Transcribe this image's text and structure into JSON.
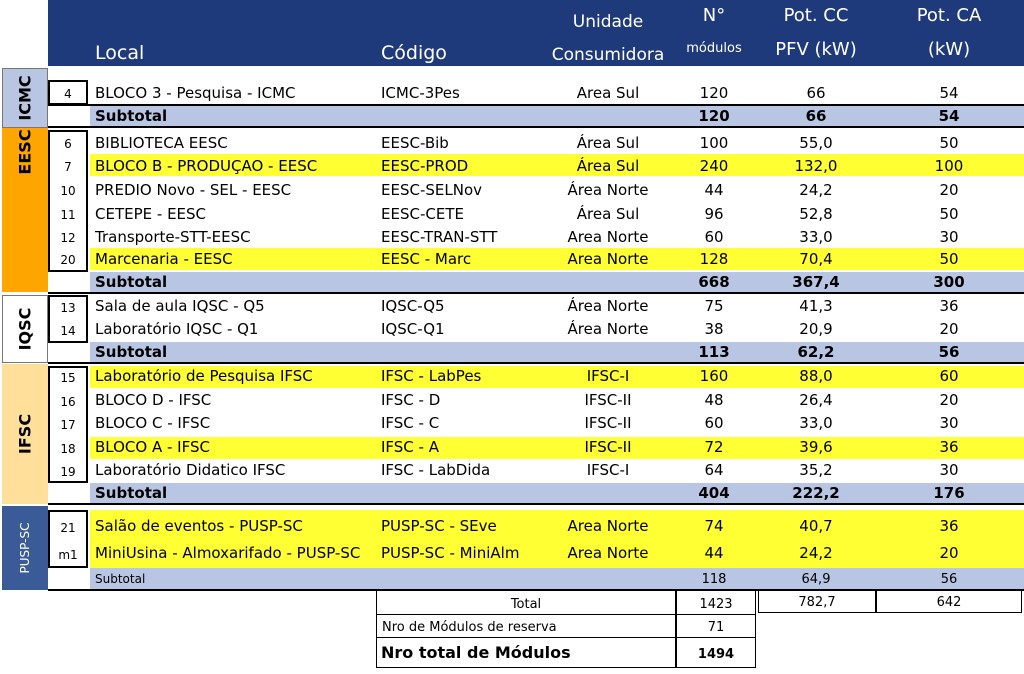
{
  "header": {
    "local": "Local",
    "codigo": "Código",
    "unidade_1": "Unidade",
    "unidade_2": "Consumidora",
    "modulos_1": "N°",
    "modulos_2": "módulos",
    "cc_1": "Pot. CC",
    "cc_2": "PFV (kW)",
    "ca_1": "Pot. CA",
    "ca_2": "(kW)"
  },
  "groups": {
    "icmc": "ICMC",
    "eesc": "EESC",
    "iqsc": "IQSC",
    "ifsc": "IFSC",
    "pusp": "PUSP-SC"
  },
  "colors": {
    "header": "#1F3A7A",
    "highlight": "#FFFF33",
    "subtotal": "#B8C6E4",
    "icmc": "#B8C6E4",
    "eesc": "#FFA500",
    "iqsc": "#FFFFFF",
    "ifsc": "#FFDF99",
    "pusp": "#3A5A98"
  },
  "rows": [
    {
      "num": "4",
      "local": "BLOCO 3 - Pesquisa - ICMC",
      "codigo": "ICMC-3Pes",
      "unidade": "Area Sul",
      "modulos": "120",
      "cc": "66",
      "ca": "54"
    },
    {
      "num": "6",
      "local": "BIBLIOTECA EESC",
      "codigo": "EESC-Bib",
      "unidade": "Área Sul",
      "modulos": "100",
      "cc": "55,0",
      "ca": "50"
    },
    {
      "num": "7",
      "local": "BLOCO B - PRODUÇÃO - EESC",
      "codigo": "EESC-PROD",
      "unidade": "Área Sul",
      "modulos": "240",
      "cc": "132,0",
      "ca": "100"
    },
    {
      "num": "10",
      "local": "PRÉDIO Novo - SEL - EESC",
      "codigo": "EESC-SELNov",
      "unidade": "Área Norte",
      "modulos": "44",
      "cc": "24,2",
      "ca": "20"
    },
    {
      "num": "11",
      "local": "CETEPE - EESC",
      "codigo": "EESC-CETE",
      "unidade": "Área Sul",
      "modulos": "96",
      "cc": "52,8",
      "ca": "50"
    },
    {
      "num": "12",
      "local": "Transporte-STT-EESC",
      "codigo": "EESC-TRAN-STT",
      "unidade": "Area Norte",
      "modulos": "60",
      "cc": "33,0",
      "ca": "30"
    },
    {
      "num": "20",
      "local": "Marcenaria - EESC",
      "codigo": "EESC - Marc",
      "unidade": "Area Norte",
      "modulos": "128",
      "cc": "70,4",
      "ca": "50"
    },
    {
      "num": "13",
      "local": "Sala de aula IQSC - Q5",
      "codigo": "IQSC-Q5",
      "unidade": "Área Norte",
      "modulos": "75",
      "cc": "41,3",
      "ca": "36"
    },
    {
      "num": "14",
      "local": "Laboratório IQSC - Q1",
      "codigo": "IQSC-Q1",
      "unidade": "Área Norte",
      "modulos": "38",
      "cc": "20,9",
      "ca": "20"
    },
    {
      "num": "15",
      "local": "Laboratório de Pesquisa IFSC",
      "codigo": "IFSC - LabPes",
      "unidade": "IFSC-I",
      "modulos": "160",
      "cc": "88,0",
      "ca": "60"
    },
    {
      "num": "16",
      "local": "BLOCO D - IFSC",
      "codigo": "IFSC - D",
      "unidade": "IFSC-II",
      "modulos": "48",
      "cc": "26,4",
      "ca": "20"
    },
    {
      "num": "17",
      "local": "BLOCO C - IFSC",
      "codigo": "IFSC - C",
      "unidade": "IFSC-II",
      "modulos": "60",
      "cc": "33,0",
      "ca": "30"
    },
    {
      "num": "18",
      "local": "BLOCO A - IFSC",
      "codigo": "IFSC - A",
      "unidade": "IFSC-II",
      "modulos": "72",
      "cc": "39,6",
      "ca": "36"
    },
    {
      "num": "19",
      "local": "Laboratório Didatico IFSC",
      "codigo": "IFSC - LabDida",
      "unidade": "IFSC-I",
      "modulos": "64",
      "cc": "35,2",
      "ca": "30"
    },
    {
      "num": "21",
      "local": "Salão de eventos - PUSP-SC",
      "codigo": "PUSP-SC - SEve",
      "unidade": "Area Norte",
      "modulos": "74",
      "cc": "40,7",
      "ca": "36"
    },
    {
      "num": "m1",
      "local": "MiniUsina - Almoxarifado - PUSP-SC",
      "codigo": "PUSP-SC - MiniAlm",
      "unidade": "Area Norte",
      "modulos": "44",
      "cc": "24,2",
      "ca": "20"
    }
  ],
  "subtotals": [
    {
      "label": "Subtotal",
      "modulos": "120",
      "cc": "66",
      "ca": "54"
    },
    {
      "label": "Subtotal",
      "modulos": "668",
      "cc": "367,4",
      "ca": "300"
    },
    {
      "label": "Subtotal",
      "modulos": "113",
      "cc": "62,2",
      "ca": "56"
    },
    {
      "label": "Subtotal",
      "modulos": "404",
      "cc": "222,2",
      "ca": "176"
    },
    {
      "label": "Subtotal",
      "modulos": "118",
      "cc": "64,9",
      "ca": "56"
    }
  ],
  "totals": {
    "total_label": "Total",
    "total_modulos": "1423",
    "total_cc": "782,7",
    "total_ca": "642",
    "reserva_label": "Nro de Módulos de reserva",
    "reserva_value": "71",
    "geral_label": "Nro total de Módulos",
    "geral_value": "1494"
  }
}
